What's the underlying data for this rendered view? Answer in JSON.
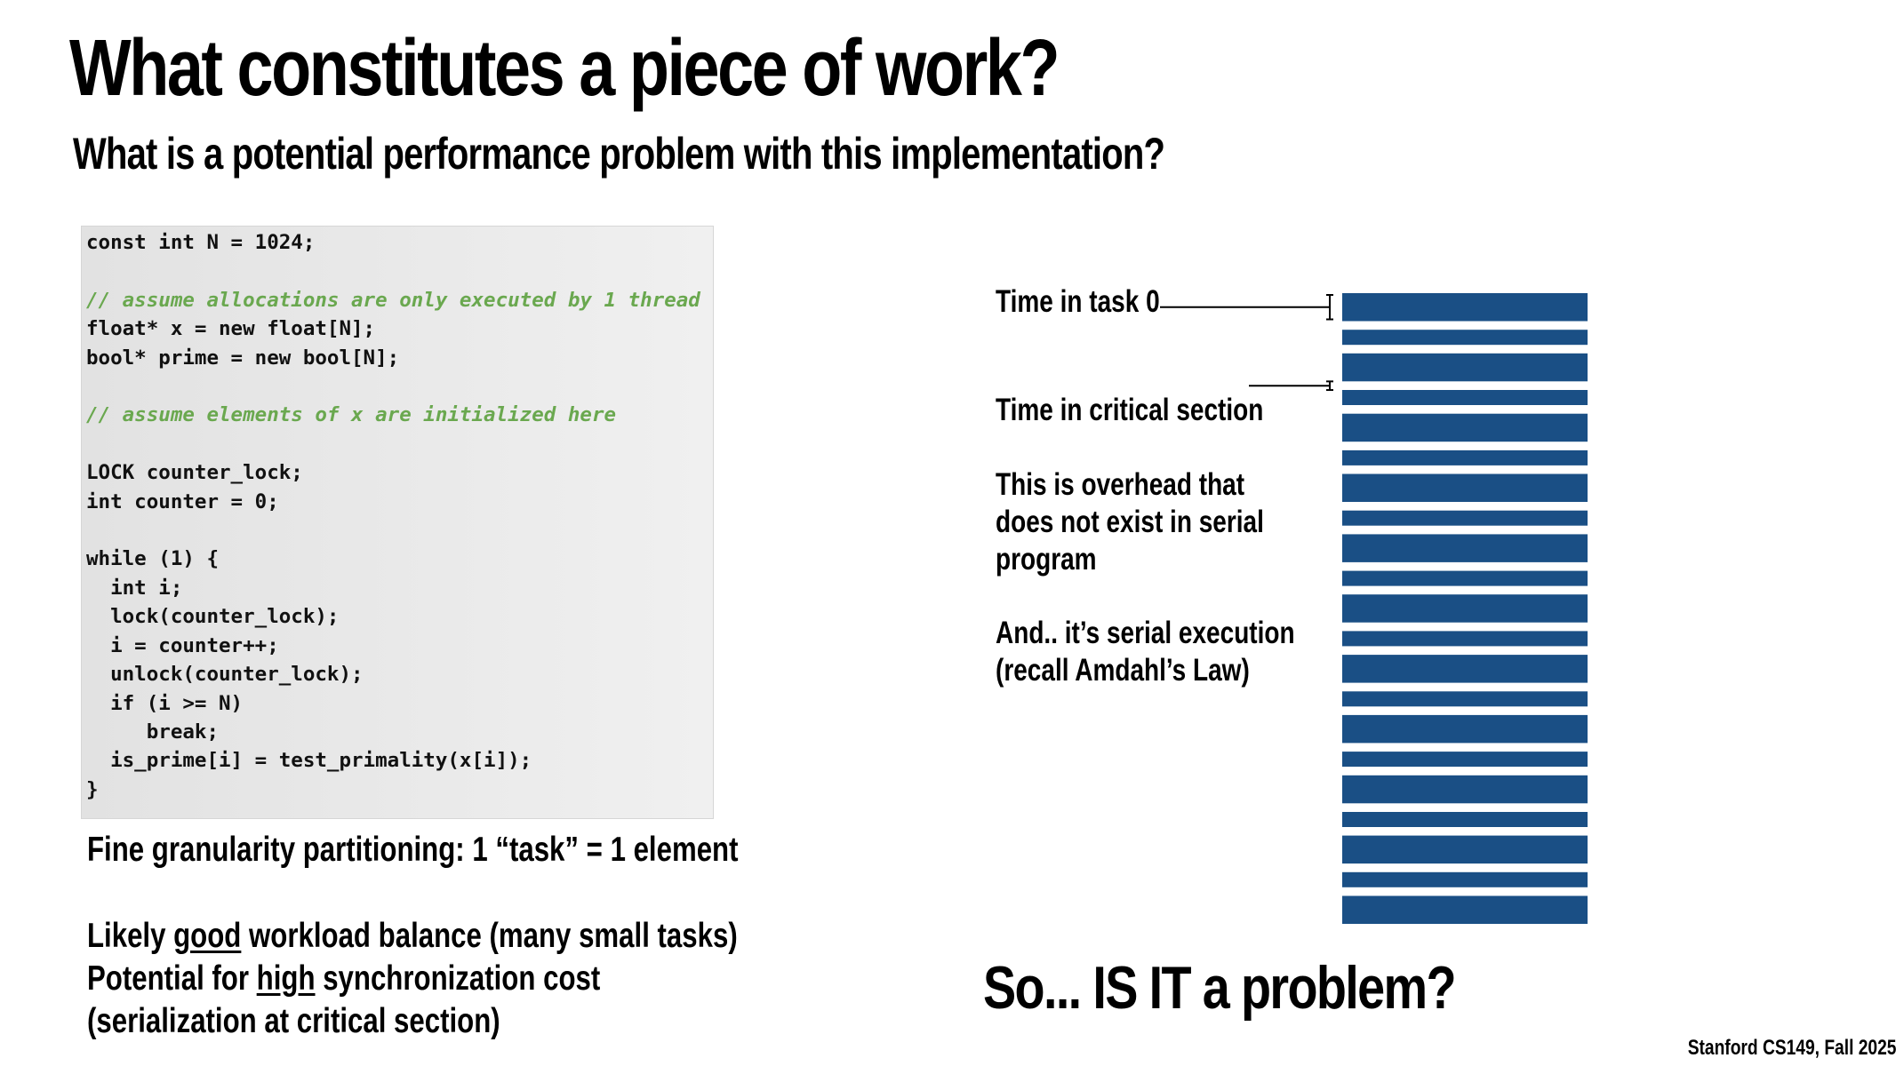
{
  "title": "What constitutes a piece of work?",
  "subtitle": "What is a potential performance problem with this implementation?",
  "code": {
    "lines": [
      {
        "text": "const int N = 1024;",
        "type": "code"
      },
      {
        "text": "",
        "type": "code"
      },
      {
        "text": "// assume allocations are only executed by 1 thread",
        "type": "comment"
      },
      {
        "text": "float* x = new float[N];",
        "type": "code"
      },
      {
        "text": "bool* prime = new bool[N];",
        "type": "code"
      },
      {
        "text": "",
        "type": "code"
      },
      {
        "text": "// assume elements of x are initialized here",
        "type": "comment"
      },
      {
        "text": "",
        "type": "code"
      },
      {
        "text": "LOCK counter_lock;",
        "type": "code"
      },
      {
        "text": "int counter = 0;",
        "type": "code"
      },
      {
        "text": "",
        "type": "code"
      },
      {
        "text": "while (1) {",
        "type": "code"
      },
      {
        "text": "  int i;",
        "type": "code"
      },
      {
        "text": "  lock(counter_lock);",
        "type": "code"
      },
      {
        "text": "  i = counter++;",
        "type": "code"
      },
      {
        "text": "  unlock(counter_lock);",
        "type": "code"
      },
      {
        "text": "  if (i >= N)",
        "type": "code"
      },
      {
        "text": "     break;",
        "type": "code"
      },
      {
        "text": "  is_prime[i] = test_primality(x[i]);",
        "type": "code"
      },
      {
        "text": "}",
        "type": "code"
      }
    ],
    "comment_color": "#6aa84f"
  },
  "notes": {
    "fine_granularity": "Fine granularity partitioning: 1 “task” = 1 element",
    "balance_prefix": "Likely ",
    "balance_emph": "good",
    "balance_suffix": " workload balance (many small tasks)",
    "sync_prefix": "Potential for ",
    "sync_emph": "high",
    "sync_suffix": " synchronization cost",
    "sync_line2": "(serialization at critical section)"
  },
  "diagram": {
    "label_task": "Time in task 0",
    "label_critical": "Time in critical section",
    "overhead_line1": "This is overhead that",
    "overhead_line2": "does not exist in serial",
    "overhead_line3": "program",
    "serial_line1": "And.. it’s serial execution",
    "serial_line2": "(recall Amdahl’s Law)",
    "bar_color": "#1a4f85",
    "timeline_segments": [
      {
        "type": "task",
        "duration": 26
      },
      {
        "type": "critical",
        "duration": 8
      },
      {
        "type": "task",
        "duration": 14
      },
      {
        "type": "critical",
        "duration": 8
      },
      {
        "type": "task",
        "duration": 26
      },
      {
        "type": "critical",
        "duration": 8
      },
      {
        "type": "task",
        "duration": 14
      },
      {
        "type": "critical",
        "duration": 8
      },
      {
        "type": "task",
        "duration": 26
      },
      {
        "type": "critical",
        "duration": 8
      },
      {
        "type": "task",
        "duration": 14
      },
      {
        "type": "critical",
        "duration": 8
      },
      {
        "type": "task",
        "duration": 26
      },
      {
        "type": "critical",
        "duration": 8
      },
      {
        "type": "task",
        "duration": 14
      },
      {
        "type": "critical",
        "duration": 8
      },
      {
        "type": "task",
        "duration": 26
      },
      {
        "type": "critical",
        "duration": 8
      },
      {
        "type": "task",
        "duration": 14
      },
      {
        "type": "critical",
        "duration": 8
      },
      {
        "type": "task",
        "duration": 26
      },
      {
        "type": "critical",
        "duration": 8
      },
      {
        "type": "task",
        "duration": 14
      },
      {
        "type": "critical",
        "duration": 8
      },
      {
        "type": "task",
        "duration": 26
      },
      {
        "type": "critical",
        "duration": 8
      },
      {
        "type": "task",
        "duration": 14
      },
      {
        "type": "critical",
        "duration": 8
      },
      {
        "type": "task",
        "duration": 26
      },
      {
        "type": "critical",
        "duration": 8
      },
      {
        "type": "task",
        "duration": 14
      },
      {
        "type": "critical",
        "duration": 8
      },
      {
        "type": "task",
        "duration": 26
      },
      {
        "type": "critical",
        "duration": 8
      },
      {
        "type": "task",
        "duration": 14
      },
      {
        "type": "critical",
        "duration": 8
      },
      {
        "type": "task",
        "duration": 26
      },
      {
        "type": "critical",
        "duration": 8
      },
      {
        "type": "task",
        "duration": 14
      },
      {
        "type": "critical",
        "duration": 8
      },
      {
        "type": "task",
        "duration": 26
      }
    ]
  },
  "question": "So... IS IT a problem?",
  "footer": "Stanford CS149, Fall 2025"
}
